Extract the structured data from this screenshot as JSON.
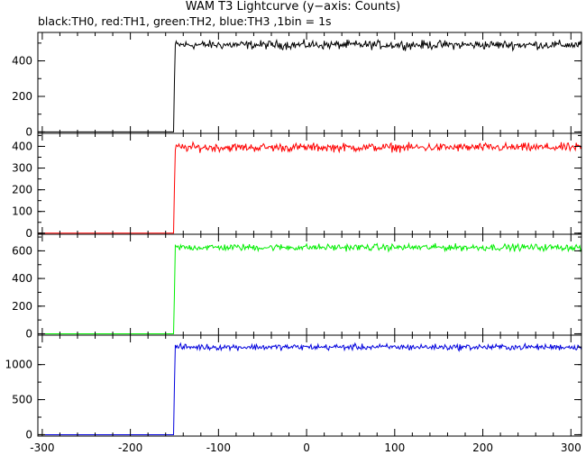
{
  "title": "WAM T3 Lightcurve (y−axis: Counts)",
  "subtitle": "black:TH0, red:TH1, green:TH2, blue:TH3 ,1bin = 1s",
  "chart_data": {
    "type": "line",
    "x_range": [
      -305,
      312
    ],
    "x_ticks": [
      -300,
      -200,
      -100,
      0,
      100,
      200,
      300
    ],
    "step_at": -150,
    "panels": [
      {
        "name": "TH0",
        "color": "#000000",
        "ylim": [
          -8,
          560
        ],
        "y_ticks": [
          0,
          200,
          400
        ],
        "baseline": 0,
        "level": 490,
        "noise": 20,
        "onset_value": 280
      },
      {
        "name": "TH1",
        "color": "#ff0000",
        "ylim": [
          -5,
          460
        ],
        "y_ticks": [
          0,
          100,
          200,
          300,
          400
        ],
        "baseline": 0,
        "level": 395,
        "noise": 16,
        "onset_value": 210
      },
      {
        "name": "TH2",
        "color": "#00ee00",
        "ylim": [
          -10,
          720
        ],
        "y_ticks": [
          0,
          200,
          400,
          600
        ],
        "baseline": 0,
        "level": 625,
        "noise": 20,
        "onset_value": 290
      },
      {
        "name": "TH3",
        "color": "#0000dd",
        "ylim": [
          -20,
          1420
        ],
        "y_ticks": [
          0,
          500,
          1000
        ],
        "baseline": 0,
        "level": 1250,
        "noise": 35,
        "onset_value": 700
      }
    ]
  }
}
